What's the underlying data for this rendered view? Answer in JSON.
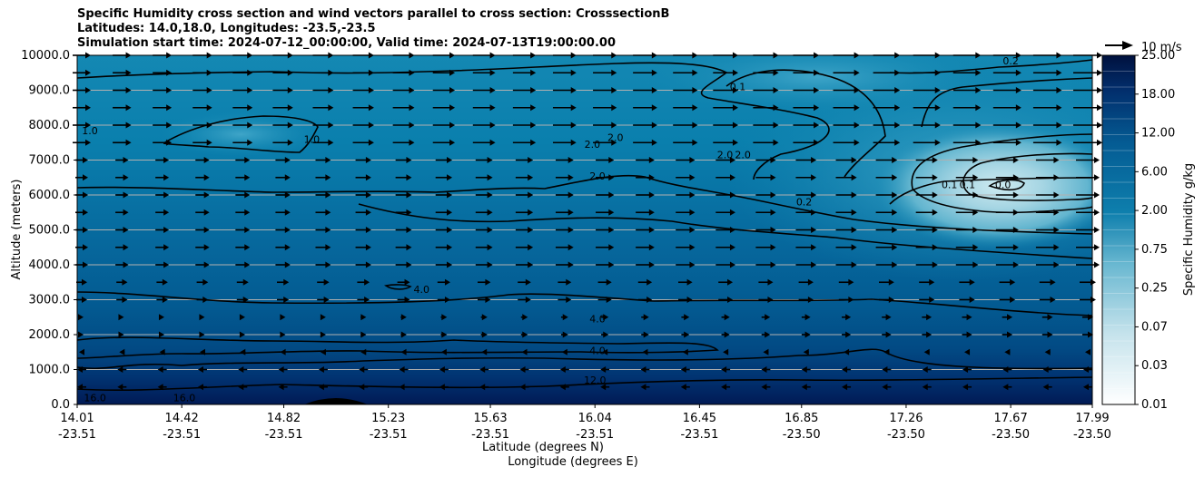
{
  "chart_data": {
    "type": "heatmap",
    "title_lines": [
      "Specific Humidity cross section and wind vectors parallel to cross section: CrosssectionB",
      "Latitudes: 14.0,18.0, Longitudes: -23.5,-23.5",
      "Simulation start time: 2024-07-12_00:00:00, Valid time: 2024-07-13T19:00:00.00"
    ],
    "xlabel_1": "Latitude (degrees N)",
    "xlabel_2": "Longitude (degrees E)",
    "ylabel": "Altitude (meters)",
    "x_ticks_lat": [
      "14.01",
      "14.42",
      "14.82",
      "15.23",
      "15.63",
      "16.04",
      "16.45",
      "16.85",
      "17.26",
      "17.67",
      "17.99"
    ],
    "x_ticks_lon": [
      "-23.51",
      "-23.51",
      "-23.51",
      "-23.51",
      "-23.51",
      "-23.51",
      "-23.51",
      "-23.50",
      "-23.50",
      "-23.50",
      "-23.50"
    ],
    "x_range": [
      14.01,
      17.99
    ],
    "y_ticks": [
      "0.0",
      "1000.0",
      "2000.0",
      "3000.0",
      "4000.0",
      "5000.0",
      "6000.0",
      "7000.0",
      "8000.0",
      "9000.0",
      "10000.0"
    ],
    "y_range": [
      0,
      10000
    ],
    "grid": "horizontal",
    "colorbar": {
      "label": "Specific Humidity g/kg",
      "ticks": [
        "0.01",
        "0.03",
        "0.07",
        "0.25",
        "0.75",
        "2.00",
        "6.00",
        "12.00",
        "18.00",
        "25.00"
      ],
      "levels": 22,
      "cmap": [
        "#ffffff",
        "#0e7fad",
        "#023373",
        "#00113e"
      ]
    },
    "quiver_key": "10 m/s",
    "contour_labels": [
      {
        "text": "1.0",
        "lat": 14.06,
        "alt": 7850
      },
      {
        "text": "1.0",
        "lat": 14.93,
        "alt": 7600
      },
      {
        "text": "2.0",
        "lat": 16.03,
        "alt": 7450
      },
      {
        "text": "2.0",
        "lat": 16.12,
        "alt": 7650
      },
      {
        "text": "2.0",
        "lat": 16.05,
        "alt": 6550
      },
      {
        "text": "2.0",
        "lat": 16.55,
        "alt": 7150
      },
      {
        "text": "2.0",
        "lat": 16.62,
        "alt": 7150
      },
      {
        "text": "0.1",
        "lat": 16.6,
        "alt": 9100
      },
      {
        "text": "0.2",
        "lat": 17.67,
        "alt": 9850
      },
      {
        "text": "0.2",
        "lat": 16.86,
        "alt": 5800
      },
      {
        "text": "0.1",
        "lat": 17.43,
        "alt": 6300
      },
      {
        "text": "0.1",
        "lat": 17.5,
        "alt": 6300
      },
      {
        "text": "0.0",
        "lat": 17.64,
        "alt": 6300
      },
      {
        "text": "4.0",
        "lat": 15.36,
        "alt": 3300
      },
      {
        "text": "4.0",
        "lat": 16.05,
        "alt": 2450
      },
      {
        "text": "4.0",
        "lat": 16.05,
        "alt": 1550
      },
      {
        "text": "12.0",
        "lat": 16.04,
        "alt": 700
      },
      {
        "text": "16.0",
        "lat": 14.08,
        "alt": 200
      },
      {
        "text": "16.0",
        "lat": 14.43,
        "alt": 200
      }
    ]
  }
}
